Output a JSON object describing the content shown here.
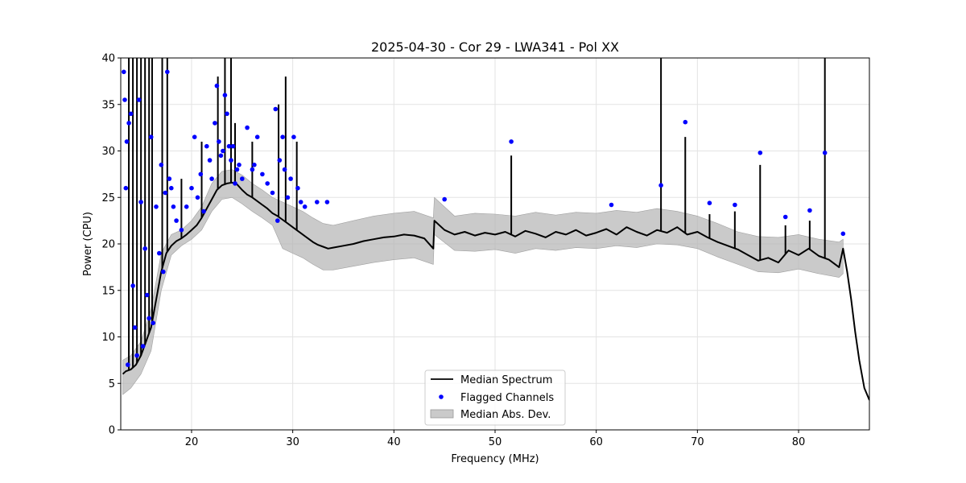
{
  "chart_data": {
    "type": "line",
    "title": "2025-04-30 - Cor 29 - LWA341 - Pol XX",
    "xlabel": "Frequency (MHz)",
    "ylabel": "Power (CPU)",
    "xlim": [
      13,
      87
    ],
    "ylim": [
      0,
      40
    ],
    "x_ticks": [
      20,
      30,
      40,
      50,
      60,
      70,
      80
    ],
    "y_ticks": [
      0,
      5,
      10,
      15,
      20,
      25,
      30,
      35,
      40
    ],
    "grid": true,
    "legend_position": "bottom-center",
    "legend": [
      "Median Spectrum",
      "Flagged Channels",
      "Median Abs. Dev."
    ],
    "series": [
      {
        "name": "Median Spectrum",
        "kind": "line",
        "color": "#000000",
        "x": [
          13.2,
          13.5,
          14.0,
          14.5,
          15.0,
          15.5,
          16.0,
          16.5,
          17.0,
          17.5,
          18.0,
          18.5,
          19.0,
          19.5,
          20.0,
          20.5,
          21.0,
          21.5,
          22.0,
          22.5,
          23.0,
          23.5,
          24.0,
          24.5,
          25.0,
          25.5,
          26.0,
          26.5,
          27.0,
          27.5,
          28.0,
          28.5,
          29.0,
          29.5,
          30.0,
          30.5,
          31.0,
          31.5,
          32.0,
          32.5,
          33.0,
          33.5,
          34.0,
          35.0,
          36.0,
          37.0,
          38.0,
          39.0,
          40.0,
          41.0,
          42.0,
          43.0,
          43.9,
          44.0,
          45.0,
          46.0,
          47.0,
          48.0,
          49.0,
          50.0,
          51.0,
          52.0,
          53.0,
          54.0,
          55.0,
          56.0,
          57.0,
          58.0,
          59.0,
          60.0,
          61.0,
          62.0,
          63.0,
          64.0,
          65.0,
          66.0,
          67.0,
          68.0,
          69.0,
          70.0,
          71.0,
          72.0,
          73.0,
          74.0,
          75.0,
          76.0,
          77.0,
          78.0,
          79.0,
          80.0,
          81.0,
          82.0,
          83.0,
          84.0,
          84.4,
          84.8,
          85.2,
          85.6,
          86.0,
          86.5,
          87.0
        ],
        "y": [
          6.0,
          6.3,
          6.5,
          7.0,
          8.0,
          9.5,
          11.0,
          14.0,
          17.0,
          19.0,
          19.8,
          20.3,
          20.6,
          21.0,
          21.5,
          22.0,
          22.8,
          23.8,
          24.8,
          25.8,
          26.3,
          26.5,
          26.6,
          26.4,
          25.8,
          25.3,
          25.0,
          24.6,
          24.2,
          23.8,
          23.3,
          23.0,
          22.6,
          22.2,
          21.8,
          21.4,
          21.0,
          20.6,
          20.2,
          19.9,
          19.7,
          19.5,
          19.6,
          19.8,
          20.0,
          20.3,
          20.5,
          20.7,
          20.8,
          21.0,
          20.9,
          20.6,
          19.5,
          22.5,
          21.5,
          21.0,
          21.3,
          20.9,
          21.2,
          21.0,
          21.3,
          20.8,
          21.4,
          21.1,
          20.7,
          21.3,
          21.0,
          21.5,
          20.9,
          21.2,
          21.6,
          21.0,
          21.8,
          21.3,
          20.9,
          21.5,
          21.2,
          21.8,
          21.0,
          21.3,
          20.7,
          20.2,
          19.8,
          19.4,
          18.8,
          18.2,
          18.5,
          18.0,
          19.3,
          18.8,
          19.5,
          18.7,
          18.3,
          17.5,
          19.5,
          17.0,
          14.0,
          10.5,
          7.5,
          4.5,
          3.2
        ]
      },
      {
        "name": "Median Abs. Dev.",
        "kind": "band",
        "color": "#b4b4b4",
        "x": [
          13.2,
          14.0,
          15.0,
          16.0,
          17.0,
          18.0,
          19.0,
          20.0,
          21.0,
          22.0,
          23.0,
          24.0,
          25.0,
          26.0,
          27.0,
          28.0,
          29.0,
          30.0,
          31.0,
          32.0,
          33.0,
          34.0,
          36.0,
          38.0,
          40.0,
          42.0,
          43.9,
          44.0,
          46.0,
          48.0,
          50.0,
          52.0,
          54.0,
          56.0,
          58.0,
          60.0,
          62.0,
          64.0,
          66.0,
          68.0,
          70.0,
          72.0,
          74.0,
          76.0,
          78.0,
          80.0,
          82.0,
          84.0,
          84.4
        ],
        "lower": [
          3.8,
          4.5,
          6.0,
          8.5,
          15.0,
          18.8,
          19.8,
          20.5,
          21.5,
          23.5,
          24.8,
          25.0,
          24.3,
          23.5,
          22.8,
          22.0,
          19.5,
          19.0,
          18.5,
          17.8,
          17.2,
          17.2,
          17.6,
          18.0,
          18.3,
          18.5,
          17.8,
          21.0,
          19.3,
          19.2,
          19.4,
          19.0,
          19.5,
          19.3,
          19.6,
          19.5,
          19.8,
          19.6,
          20.0,
          19.9,
          19.5,
          18.6,
          17.8,
          17.0,
          16.9,
          17.3,
          16.8,
          16.4,
          16.8
        ],
        "upper": [
          7.5,
          8.0,
          9.5,
          13.0,
          19.0,
          21.0,
          21.5,
          22.5,
          24.0,
          26.5,
          27.8,
          28.0,
          27.4,
          26.5,
          25.8,
          25.0,
          24.5,
          24.0,
          23.5,
          22.8,
          22.2,
          22.0,
          22.5,
          23.0,
          23.3,
          23.5,
          22.8,
          25.0,
          23.0,
          23.3,
          23.2,
          23.0,
          23.4,
          23.1,
          23.4,
          23.3,
          23.6,
          23.4,
          23.8,
          23.5,
          23.0,
          22.2,
          21.3,
          20.8,
          20.7,
          21.0,
          20.5,
          20.2,
          20.5
        ]
      },
      {
        "name": "Flagged Channels",
        "kind": "scatter",
        "color": "#0000ff",
        "x": [
          13.3,
          13.4,
          13.5,
          13.6,
          13.7,
          13.8,
          14.0,
          14.2,
          14.4,
          14.6,
          14.8,
          15.0,
          15.2,
          15.4,
          15.6,
          15.8,
          16.0,
          16.2,
          16.5,
          16.8,
          17.0,
          17.2,
          17.4,
          17.6,
          17.8,
          18.0,
          18.2,
          18.5,
          19.0,
          19.5,
          20.0,
          20.3,
          20.6,
          20.9,
          21.2,
          21.5,
          21.8,
          22.0,
          22.3,
          22.5,
          22.7,
          22.9,
          23.1,
          23.3,
          23.5,
          23.7,
          23.9,
          24.1,
          24.3,
          24.5,
          24.7,
          25.0,
          25.5,
          26.0,
          26.2,
          26.5,
          27.0,
          27.5,
          28.0,
          28.3,
          28.5,
          28.7,
          29.0,
          29.2,
          29.5,
          29.8,
          30.1,
          30.5,
          30.8,
          31.2,
          32.4,
          33.4,
          45.0,
          51.6,
          61.5,
          66.4,
          68.8,
          71.2,
          73.7,
          76.2,
          78.7,
          81.1,
          82.6,
          84.4
        ],
        "y": [
          38.5,
          35.5,
          26.0,
          31.0,
          7.0,
          33.0,
          34.0,
          15.5,
          11.0,
          8.0,
          35.5,
          24.5,
          9.0,
          19.5,
          14.5,
          12.0,
          31.5,
          11.5,
          24.0,
          19.0,
          28.5,
          17.0,
          25.5,
          38.5,
          27.0,
          26.0,
          24.0,
          22.5,
          21.5,
          24.0,
          26.0,
          31.5,
          25.0,
          27.5,
          23.5,
          30.5,
          29.0,
          27.0,
          33.0,
          37.0,
          31.0,
          29.5,
          30.0,
          36.0,
          34.0,
          30.5,
          29.0,
          30.5,
          26.5,
          28.0,
          28.5,
          27.0,
          32.5,
          28.0,
          28.5,
          31.5,
          27.5,
          26.5,
          25.5,
          34.5,
          22.5,
          29.0,
          31.5,
          28.0,
          25.0,
          27.0,
          31.5,
          26.0,
          24.5,
          24.0,
          24.5,
          24.5,
          24.8,
          31.0,
          24.2,
          26.3,
          33.1,
          24.4,
          24.2,
          29.8,
          22.9,
          23.6,
          29.8,
          21.1
        ]
      }
    ],
    "spikes": {
      "x": [
        13.8,
        14.2,
        14.6,
        15.0,
        15.4,
        15.8,
        16.1,
        17.1,
        17.6,
        19.0,
        21.0,
        22.6,
        23.3,
        23.9,
        24.3,
        26.0,
        28.6,
        29.3,
        30.4,
        51.6,
        66.4,
        68.8,
        71.2,
        73.7,
        76.2,
        78.7,
        81.1,
        82.6
      ],
      "y": [
        40,
        40,
        40,
        40,
        40,
        40,
        40,
        40,
        40,
        27,
        31,
        38,
        40,
        40,
        33,
        31,
        35,
        38,
        31,
        29.5,
        40,
        31.5,
        23.2,
        23.5,
        28.5,
        22.0,
        22.5,
        40
      ]
    }
  }
}
